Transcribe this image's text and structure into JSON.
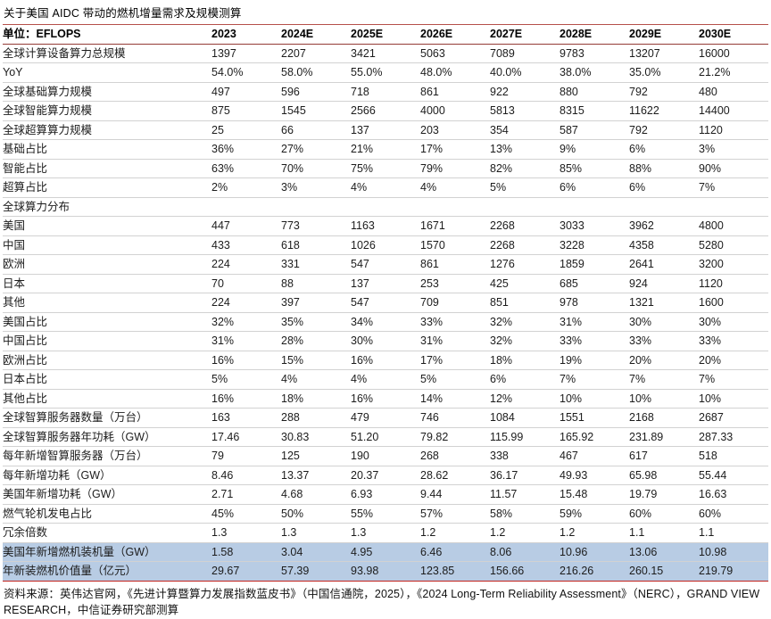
{
  "title": "关于美国 AIDC 带动的燃机增量需求及规模测算",
  "footer": "资料来源：英伟达官网，《先进计算暨算力发展指数蓝皮书》（中国信通院，2025），《2024 Long-Term Reliability Assessment》（NERC），GRAND VIEW RESEARCH，中信证券研究部测算",
  "colors": {
    "header_line_top": "#b5504a",
    "header_line_bottom": "#943c36",
    "row_separator": "#d2d2d2",
    "table_bottom_line": "#c2231d",
    "highlight_row_bg": "#b8cce4",
    "text": "#1c1c1c"
  },
  "table": {
    "header": [
      "单位：EFLOPS",
      "2023",
      "2024E",
      "2025E",
      "2026E",
      "2027E",
      "2028E",
      "2029E",
      "2030E"
    ],
    "rows": [
      {
        "label": "全球计算设备算力总规模",
        "values": [
          "1397",
          "2207",
          "3421",
          "5063",
          "7089",
          "9783",
          "13207",
          "16000"
        ]
      },
      {
        "label": "YoY",
        "values": [
          "54.0%",
          "58.0%",
          "55.0%",
          "48.0%",
          "40.0%",
          "38.0%",
          "35.0%",
          "21.2%"
        ]
      },
      {
        "label": "全球基础算力规模",
        "values": [
          "497",
          "596",
          "718",
          "861",
          "922",
          "880",
          "792",
          "480"
        ]
      },
      {
        "label": "全球智能算力规模",
        "values": [
          "875",
          "1545",
          "2566",
          "4000",
          "5813",
          "8315",
          "11622",
          "14400"
        ]
      },
      {
        "label": "全球超算算力规模",
        "values": [
          "25",
          "66",
          "137",
          "203",
          "354",
          "587",
          "792",
          "1120"
        ]
      },
      {
        "label": "基础占比",
        "values": [
          "36%",
          "27%",
          "21%",
          "17%",
          "13%",
          "9%",
          "6%",
          "3%"
        ]
      },
      {
        "label": "智能占比",
        "values": [
          "63%",
          "70%",
          "75%",
          "79%",
          "82%",
          "85%",
          "88%",
          "90%"
        ]
      },
      {
        "label": "超算占比",
        "values": [
          "2%",
          "3%",
          "4%",
          "4%",
          "5%",
          "6%",
          "6%",
          "7%"
        ]
      },
      {
        "label": "全球算力分布",
        "values": [
          "",
          "",
          "",
          "",
          "",
          "",
          "",
          ""
        ],
        "section": true
      },
      {
        "label": "美国",
        "values": [
          "447",
          "773",
          "1163",
          "1671",
          "2268",
          "3033",
          "3962",
          "4800"
        ]
      },
      {
        "label": "中国",
        "values": [
          "433",
          "618",
          "1026",
          "1570",
          "2268",
          "3228",
          "4358",
          "5280"
        ]
      },
      {
        "label": "欧洲",
        "values": [
          "224",
          "331",
          "547",
          "861",
          "1276",
          "1859",
          "2641",
          "3200"
        ]
      },
      {
        "label": "日本",
        "values": [
          "70",
          "88",
          "137",
          "253",
          "425",
          "685",
          "924",
          "1120"
        ]
      },
      {
        "label": "其他",
        "values": [
          "224",
          "397",
          "547",
          "709",
          "851",
          "978",
          "1321",
          "1600"
        ]
      },
      {
        "label": "美国占比",
        "values": [
          "32%",
          "35%",
          "34%",
          "33%",
          "32%",
          "31%",
          "30%",
          "30%"
        ]
      },
      {
        "label": "中国占比",
        "values": [
          "31%",
          "28%",
          "30%",
          "31%",
          "32%",
          "33%",
          "33%",
          "33%"
        ]
      },
      {
        "label": "欧洲占比",
        "values": [
          "16%",
          "15%",
          "16%",
          "17%",
          "18%",
          "19%",
          "20%",
          "20%"
        ]
      },
      {
        "label": "日本占比",
        "values": [
          "5%",
          "4%",
          "4%",
          "5%",
          "6%",
          "7%",
          "7%",
          "7%"
        ]
      },
      {
        "label": "其他占比",
        "values": [
          "16%",
          "18%",
          "16%",
          "14%",
          "12%",
          "10%",
          "10%",
          "10%"
        ]
      },
      {
        "label": "全球智算服务器数量（万台）",
        "values": [
          "163",
          "288",
          "479",
          "746",
          "1084",
          "1551",
          "2168",
          "2687"
        ]
      },
      {
        "label": "全球智算服务器年功耗（GW）",
        "values": [
          "17.46",
          "30.83",
          "51.20",
          "79.82",
          "115.99",
          "165.92",
          "231.89",
          "287.33"
        ]
      },
      {
        "label": "每年新增智算服务器（万台）",
        "values": [
          "79",
          "125",
          "190",
          "268",
          "338",
          "467",
          "617",
          "518"
        ]
      },
      {
        "label": "每年新增功耗（GW）",
        "values": [
          "8.46",
          "13.37",
          "20.37",
          "28.62",
          "36.17",
          "49.93",
          "65.98",
          "55.44"
        ]
      },
      {
        "label": "美国年新增功耗（GW）",
        "values": [
          "2.71",
          "4.68",
          "6.93",
          "9.44",
          "11.57",
          "15.48",
          "19.79",
          "16.63"
        ]
      },
      {
        "label": "燃气轮机发电占比",
        "values": [
          "45%",
          "50%",
          "55%",
          "57%",
          "58%",
          "59%",
          "60%",
          "60%"
        ]
      },
      {
        "label": "冗余倍数",
        "values": [
          "1.3",
          "1.3",
          "1.3",
          "1.2",
          "1.2",
          "1.2",
          "1.1",
          "1.1"
        ]
      },
      {
        "label": "美国年新增燃机装机量（GW）",
        "values": [
          "1.58",
          "3.04",
          "4.95",
          "6.46",
          "8.06",
          "10.96",
          "13.06",
          "10.98"
        ],
        "highlight": true
      },
      {
        "label": "年新装燃机价值量（亿元）",
        "values": [
          "29.67",
          "57.39",
          "93.98",
          "123.85",
          "156.66",
          "216.26",
          "260.15",
          "219.79"
        ],
        "highlight": true
      }
    ]
  }
}
